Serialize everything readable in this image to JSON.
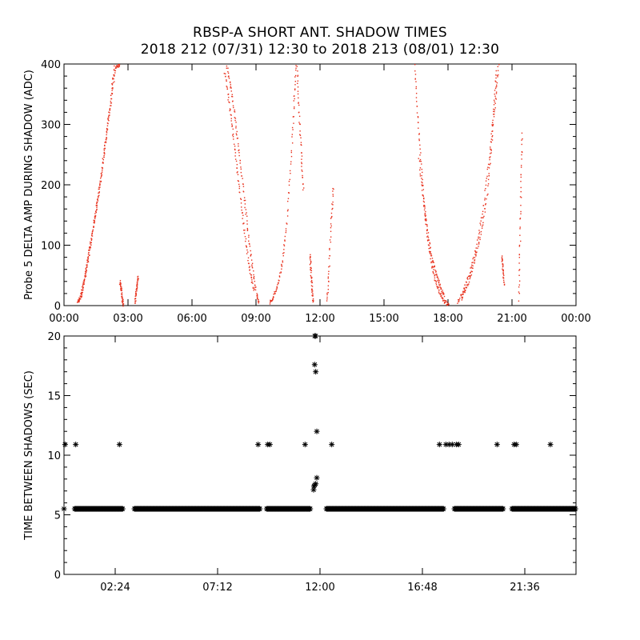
{
  "header": {
    "title": "RBSP-A SHORT ANT. SHADOW TIMES",
    "subtitle": "2018 212 (07/31) 12:30 to 2018 213 (08/01) 12:30"
  },
  "chart_data": [
    {
      "type": "scatter",
      "marker_color": "#e8321e",
      "xlabel": "",
      "ylabel": "Probe 5 DELTA AMP DURING SHADOW (ADC)",
      "x_unit": "hours",
      "xlim": [
        0,
        24
      ],
      "ylim": [
        0,
        400
      ],
      "x_tick_values": [
        0,
        3,
        6,
        9,
        12,
        15,
        18,
        21,
        24
      ],
      "x_tick_labels": [
        "00:00",
        "03:00",
        "06:00",
        "09:00",
        "12:00",
        "15:00",
        "18:00",
        "21:00",
        "00:00"
      ],
      "y_tick_values": [
        0,
        100,
        200,
        300,
        400
      ],
      "y_tick_labels": [
        "0",
        "100",
        "200",
        "300",
        "400"
      ],
      "series": [
        {
          "points": [
            [
              0.6,
              5
            ],
            [
              0.75,
              15
            ],
            [
              0.9,
              40
            ],
            [
              1.05,
              70
            ],
            [
              1.2,
              100
            ],
            [
              1.4,
              140
            ],
            [
              1.6,
              185
            ],
            [
              1.8,
              235
            ],
            [
              2.0,
              290
            ],
            [
              2.2,
              345
            ],
            [
              2.4,
              395
            ],
            [
              2.6,
              400
            ]
          ]
        },
        {
          "points": [
            [
              0.75,
              10
            ],
            [
              0.95,
              45
            ],
            [
              1.15,
              85
            ],
            [
              1.35,
              130
            ],
            [
              1.55,
              175
            ],
            [
              1.75,
              225
            ],
            [
              1.95,
              280
            ],
            [
              2.15,
              340
            ],
            [
              2.35,
              400
            ]
          ]
        },
        {
          "points": [
            [
              2.6,
              40
            ],
            [
              2.65,
              30
            ],
            [
              2.7,
              15
            ],
            [
              2.75,
              0
            ]
          ]
        },
        {
          "points": [
            [
              3.3,
              5
            ],
            [
              3.35,
              20
            ],
            [
              3.4,
              35
            ],
            [
              3.45,
              50
            ]
          ]
        },
        {
          "points": [
            [
              7.6,
              400
            ],
            [
              7.8,
              360
            ],
            [
              8.0,
              310
            ],
            [
              8.2,
              250
            ],
            [
              8.4,
              190
            ],
            [
              8.6,
              125
            ],
            [
              8.8,
              65
            ],
            [
              9.0,
              20
            ],
            [
              9.1,
              5
            ]
          ]
        },
        {
          "points": [
            [
              7.5,
              390
            ],
            [
              7.7,
              340
            ],
            [
              7.9,
              285
            ],
            [
              8.1,
              225
            ],
            [
              8.3,
              165
            ],
            [
              8.5,
              105
            ],
            [
              8.7,
              55
            ],
            [
              8.9,
              25
            ]
          ]
        },
        {
          "points": [
            [
              9.6,
              5
            ],
            [
              9.8,
              15
            ],
            [
              10.0,
              35
            ],
            [
              10.2,
              70
            ],
            [
              10.4,
              130
            ],
            [
              10.6,
              230
            ],
            [
              10.75,
              330
            ],
            [
              10.85,
              400
            ]
          ]
        },
        {
          "points": [
            [
              10.9,
              400
            ],
            [
              11.0,
              320
            ],
            [
              11.1,
              250
            ],
            [
              11.2,
              190
            ]
          ]
        },
        {
          "points": [
            [
              11.5,
              85
            ],
            [
              11.55,
              60
            ],
            [
              11.6,
              30
            ],
            [
              11.65,
              5
            ]
          ]
        },
        {
          "points": [
            [
              12.3,
              5
            ],
            [
              12.4,
              60
            ],
            [
              12.5,
              140
            ],
            [
              12.6,
              200
            ]
          ]
        },
        {
          "points": [
            [
              16.4,
              400
            ],
            [
              16.55,
              320
            ],
            [
              16.7,
              240
            ],
            [
              16.85,
              170
            ],
            [
              17.0,
              115
            ],
            [
              17.2,
              70
            ],
            [
              17.4,
              40
            ],
            [
              17.6,
              20
            ],
            [
              17.8,
              8
            ],
            [
              18.0,
              2
            ]
          ]
        },
        {
          "points": [
            [
              16.6,
              250
            ],
            [
              16.8,
              180
            ],
            [
              17.0,
              130
            ],
            [
              17.2,
              85
            ],
            [
              17.4,
              55
            ],
            [
              17.6,
              35
            ],
            [
              17.8,
              15
            ]
          ]
        },
        {
          "points": [
            [
              18.4,
              5
            ],
            [
              18.7,
              25
            ],
            [
              19.0,
              55
            ],
            [
              19.3,
              95
            ],
            [
              19.6,
              155
            ],
            [
              19.9,
              240
            ],
            [
              20.1,
              320
            ],
            [
              20.25,
              390
            ]
          ]
        },
        {
          "points": [
            [
              18.6,
              10
            ],
            [
              18.9,
              35
            ],
            [
              19.2,
              70
            ],
            [
              19.5,
              115
            ],
            [
              19.8,
              180
            ],
            [
              20.0,
              260
            ],
            [
              20.2,
              340
            ],
            [
              20.35,
              400
            ]
          ]
        },
        {
          "points": [
            [
              20.5,
              85
            ],
            [
              20.55,
              60
            ],
            [
              20.6,
              35
            ]
          ]
        },
        {
          "points": [
            [
              21.3,
              5
            ],
            [
              21.35,
              100
            ],
            [
              21.4,
              200
            ],
            [
              21.45,
              290
            ]
          ]
        }
      ]
    },
    {
      "type": "scatter",
      "marker": "*",
      "marker_color": "#000000",
      "xlabel": "",
      "ylabel": "TIME BETWEEN SHADOWS (SEC)",
      "x_unit": "hours",
      "xlim": [
        0,
        24
      ],
      "ylim": [
        0,
        20
      ],
      "x_tick_values": [
        2.4,
        7.2,
        12.0,
        16.8,
        21.6
      ],
      "x_tick_labels": [
        "02:24",
        "07:12",
        "12:00",
        "16:48",
        "21:36"
      ],
      "y_tick_values": [
        0,
        5,
        10,
        15,
        20
      ],
      "y_tick_labels": [
        "0",
        "5",
        "10",
        "15",
        "20"
      ],
      "baseline_value": 5.5,
      "baseline_segments": [
        [
          0.5,
          2.75
        ],
        [
          3.3,
          9.2
        ],
        [
          9.5,
          11.55
        ],
        [
          12.3,
          17.8
        ],
        [
          18.3,
          20.6
        ],
        [
          21.0,
          24.0
        ]
      ],
      "points": [
        [
          0.0,
          5.5
        ],
        [
          0.05,
          10.9
        ],
        [
          0.55,
          10.9
        ],
        [
          2.6,
          10.9
        ],
        [
          9.1,
          10.9
        ],
        [
          9.55,
          10.9
        ],
        [
          9.65,
          10.9
        ],
        [
          11.3,
          10.9
        ],
        [
          12.55,
          10.9
        ],
        [
          17.6,
          10.9
        ],
        [
          17.9,
          10.9
        ],
        [
          18.05,
          10.9
        ],
        [
          18.2,
          10.9
        ],
        [
          18.4,
          10.9
        ],
        [
          18.5,
          10.9
        ],
        [
          20.3,
          10.9
        ],
        [
          21.1,
          10.9
        ],
        [
          21.2,
          10.9
        ],
        [
          22.8,
          10.9
        ],
        [
          11.75,
          20
        ],
        [
          11.8,
          20
        ],
        [
          11.75,
          17.6
        ],
        [
          11.8,
          17.0
        ],
        [
          11.85,
          12.0
        ],
        [
          11.85,
          8.1
        ],
        [
          11.8,
          7.6
        ],
        [
          11.75,
          7.5
        ],
        [
          11.7,
          7.1
        ],
        [
          11.72,
          7.4
        ]
      ]
    }
  ]
}
